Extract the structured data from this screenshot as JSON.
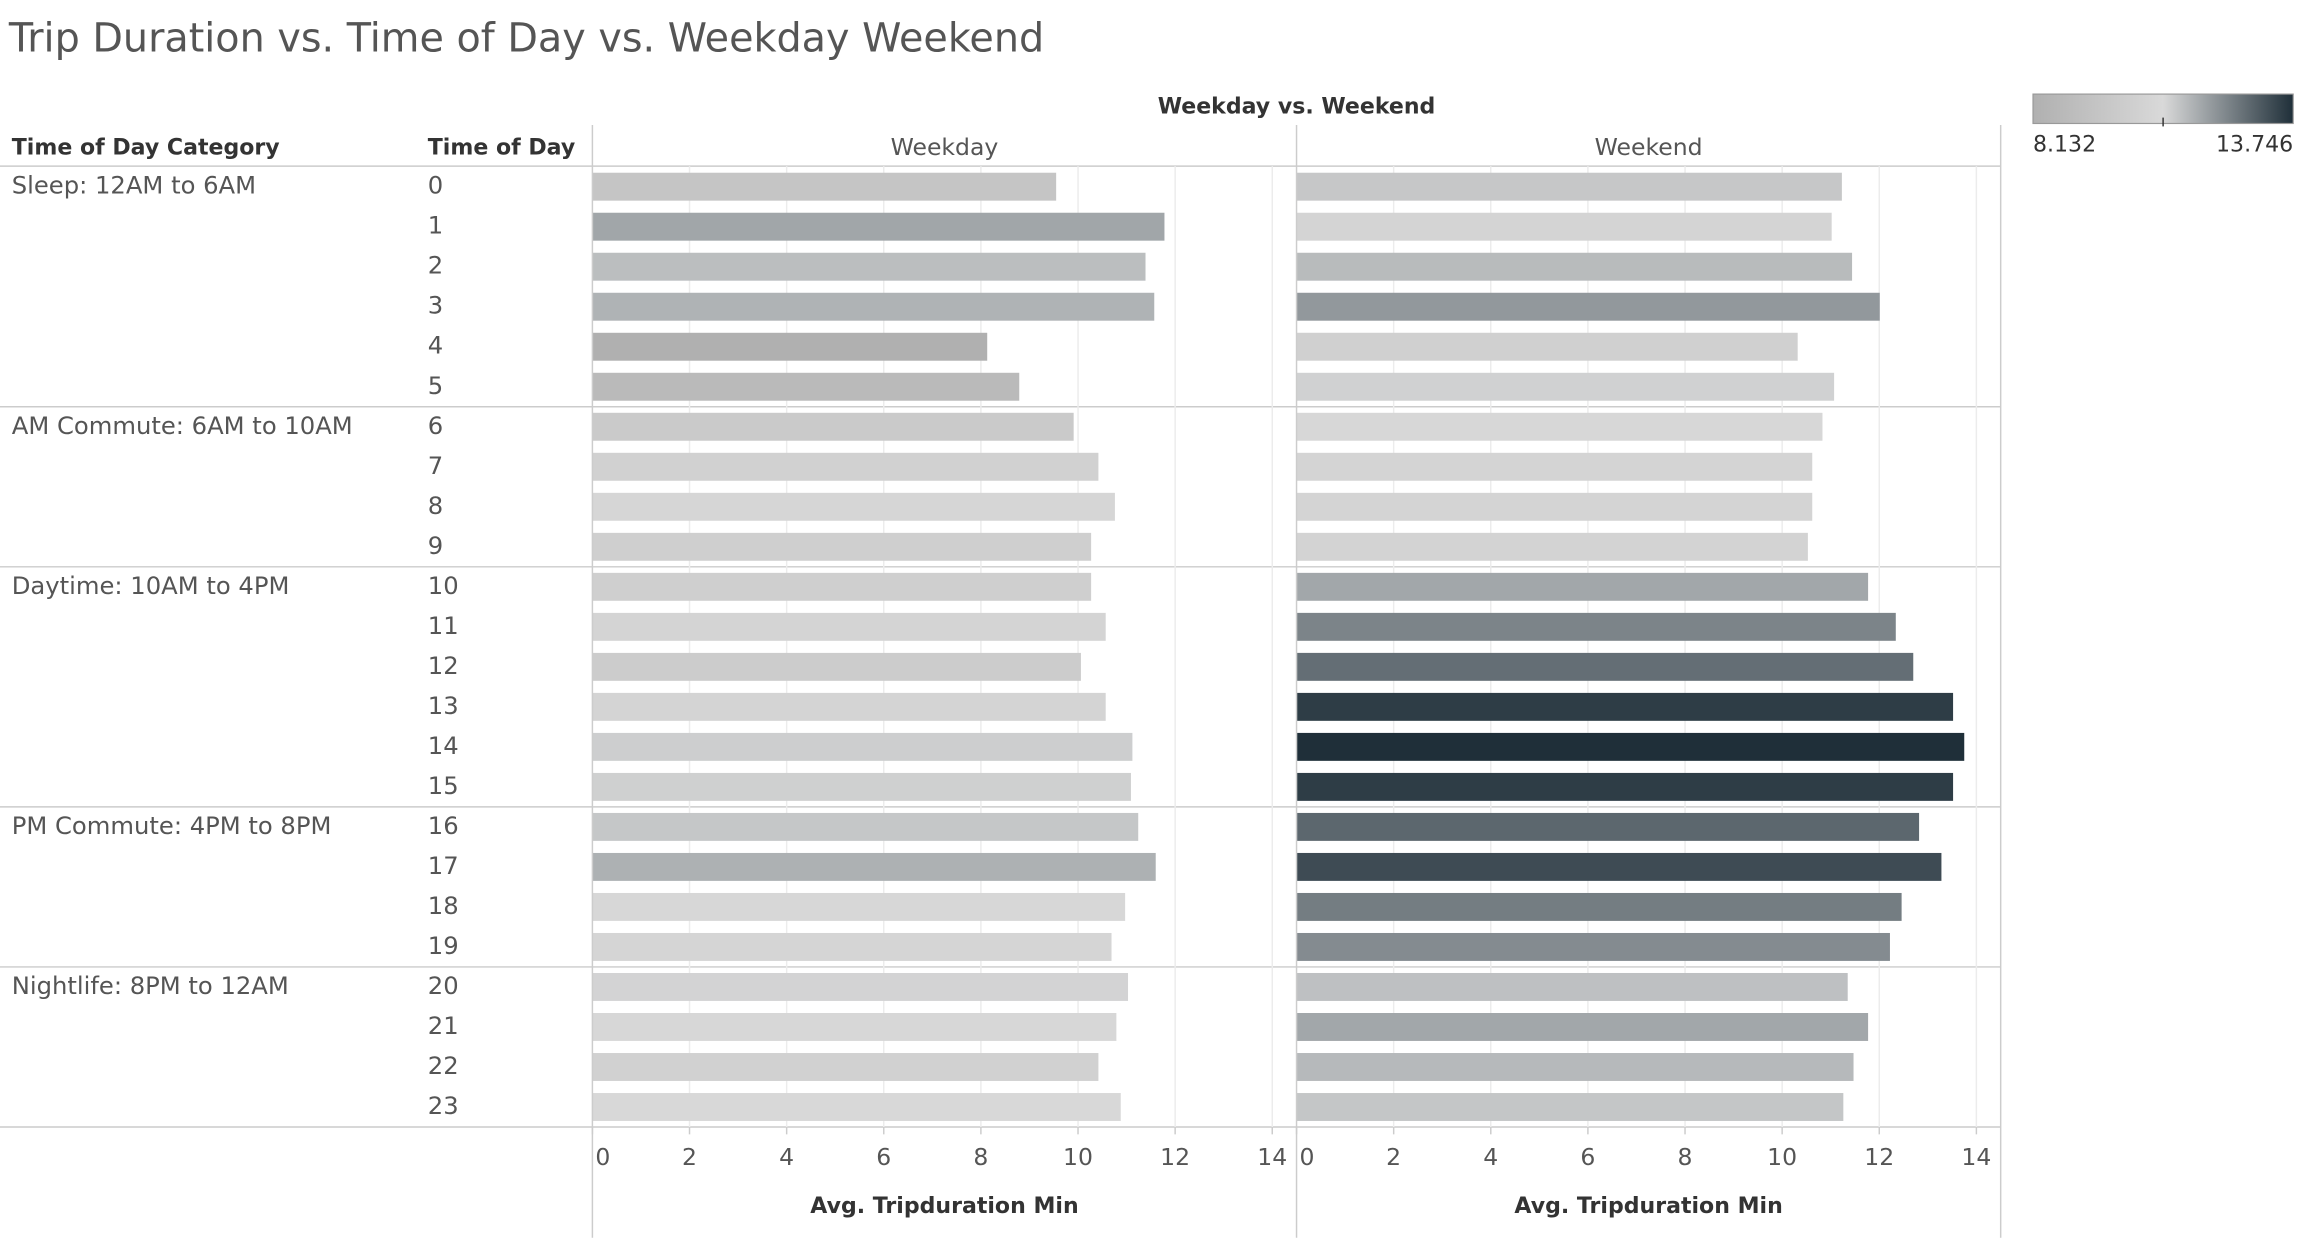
{
  "chart_data": {
    "type": "bar",
    "orientation": "horizontal",
    "title": "Trip Duration vs. Time of Day vs. Weekday Weekend",
    "column_header": "Weekday vs. Weekend",
    "row_headers": [
      "Time of Day Category",
      "Time of Day"
    ],
    "x_label": "Avg. Tripduration Min",
    "groups": [
      {
        "name": "Sleep: 12AM to 6AM",
        "categories": [
          "0",
          "1",
          "2",
          "3",
          "4",
          "5"
        ]
      },
      {
        "name": "AM Commute: 6AM to 10AM",
        "categories": [
          "6",
          "7",
          "8",
          "9"
        ]
      },
      {
        "name": "Daytime: 10AM to 4PM",
        "categories": [
          "10",
          "11",
          "12",
          "13",
          "14",
          "15"
        ]
      },
      {
        "name": "PM Commute: 4PM to 8PM",
        "categories": [
          "16",
          "17",
          "18",
          "19"
        ]
      },
      {
        "name": "Nightlife: 8PM to 12AM",
        "categories": [
          "20",
          "21",
          "22",
          "23"
        ]
      }
    ],
    "series": [
      {
        "name": "Weekday",
        "values": [
          9.55,
          11.78,
          11.39,
          11.57,
          8.13,
          8.79,
          9.91,
          10.42,
          10.76,
          10.27,
          10.27,
          10.57,
          10.06,
          10.57,
          11.12,
          11.09,
          11.24,
          11.6,
          10.97,
          10.69,
          11.03,
          10.79,
          10.42,
          10.88
        ]
      },
      {
        "name": "Weekend",
        "values": [
          11.23,
          11.02,
          11.44,
          12.01,
          10.32,
          11.07,
          10.83,
          10.62,
          10.62,
          10.53,
          11.77,
          12.34,
          12.7,
          13.52,
          13.75,
          13.52,
          12.82,
          13.28,
          12.46,
          12.22,
          11.35,
          11.77,
          11.47,
          11.26
        ]
      }
    ],
    "xlim": [
      0,
      14.5
    ],
    "xticks": [
      0,
      2,
      4,
      6,
      8,
      10,
      12,
      14
    ],
    "grid": true,
    "color_scale": {
      "min": 8.132,
      "max": 13.746,
      "colors": [
        "#b0b0b0",
        "#d9d9d9",
        "#1f2f39"
      ]
    }
  }
}
